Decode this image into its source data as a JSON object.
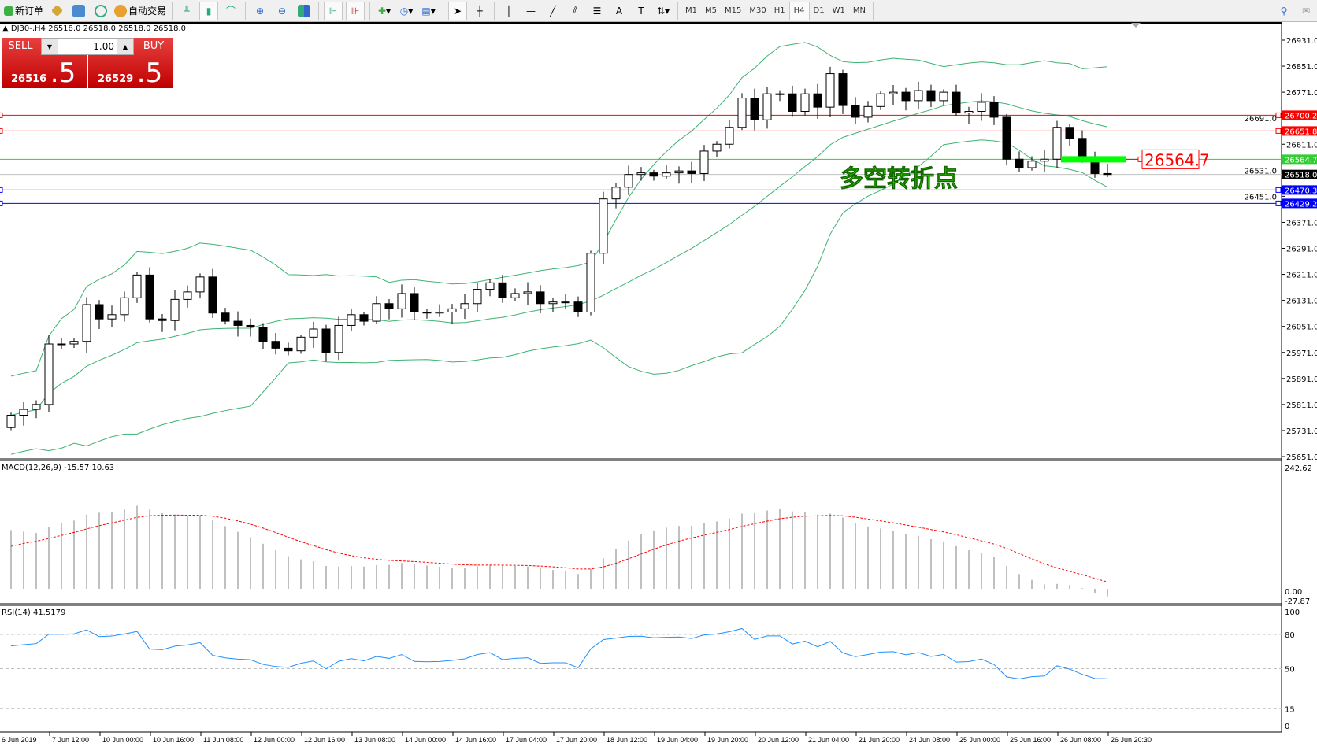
{
  "toolbar": {
    "new_order": "新订单",
    "auto_trading": "自动交易",
    "timeframes": [
      "M1",
      "M5",
      "M15",
      "M30",
      "H1",
      "H4",
      "D1",
      "W1",
      "MN"
    ],
    "active_timeframe": "H4"
  },
  "chart_header": "DJ30-,H4  26518.0 26518.0 26518.0 26518.0",
  "one_click": {
    "sell_label": "SELL",
    "buy_label": "BUY",
    "lot": "1.00",
    "sell_price_main": "26516",
    "sell_price_big": ".5",
    "buy_price_main": "26529",
    "buy_price_big": ".5"
  },
  "annotation_text": "多空转折点",
  "annotation_price_label": "26564.7",
  "colors": {
    "bollinger": "#3cb371",
    "rsi": "#1e90ff",
    "macd_hist": "#c0c0c0",
    "macd_signal": "#ff0000",
    "green_level": "#00ff00"
  },
  "chart_data": {
    "type": "candlestick",
    "symbol": "DJ30-",
    "timeframe": "H4",
    "first_open": 25740,
    "closes": [
      25778,
      25796,
      25811,
      25997,
      25997,
      26005,
      26118,
      26074,
      26087,
      26139,
      26209,
      26074,
      26069,
      26134,
      26157,
      26203,
      26092,
      26067,
      26054,
      26049,
      26005,
      25984,
      25976,
      26018,
      26043,
      25971,
      26054,
      26087,
      26067,
      26121,
      26105,
      26152,
      26095,
      26092,
      26095,
      26105,
      26121,
      26165,
      26185,
      26139,
      26152,
      26157,
      26121,
      26126,
      26126,
      26095,
      26276,
      26443,
      26479,
      26518,
      26523,
      26513,
      26523,
      26529,
      26521,
      26590,
      26611,
      26663,
      26753,
      26686,
      26766,
      26766,
      26712,
      26766,
      26725,
      26828,
      26730,
      26694,
      26727,
      26766,
      26771,
      26745,
      26776,
      26745,
      26771,
      26707,
      26712,
      26740,
      26694,
      26565,
      26539,
      26559,
      26565,
      26663,
      26629,
      26572,
      26521,
      26518
    ],
    "price_ticks": [
      "26931.0",
      "26851.0",
      "26771.0",
      "26691.0",
      "26611.0",
      "26531.0",
      "26451.0",
      "26371.0",
      "26291.0",
      "26211.0",
      "26131.0",
      "26051.0",
      "25971.0",
      "25891.0",
      "25811.0",
      "25731.0",
      "25651.0"
    ],
    "ylim": [
      25651,
      26931
    ],
    "time_labels": [
      "6 Jun 2019",
      "7 Jun 12:00",
      "10 Jun 00:00",
      "10 Jun 16:00",
      "11 Jun 08:00",
      "12 Jun 00:00",
      "12 Jun 16:00",
      "13 Jun 08:00",
      "14 Jun 00:00",
      "14 Jun 16:00",
      "17 Jun 04:00",
      "17 Jun 20:00",
      "18 Jun 12:00",
      "19 Jun 04:00",
      "19 Jun 20:00",
      "20 Jun 12:00",
      "21 Jun 04:00",
      "21 Jun 20:00",
      "24 Jun 08:00",
      "25 Jun 00:00",
      "25 Jun 16:00",
      "26 Jun 08:00",
      "26 Jun 20:30"
    ],
    "hlines": [
      {
        "price": 26700.2,
        "label": "26700.2",
        "color": "#ff0000"
      },
      {
        "price": 26651.8,
        "label": "26651.8",
        "color": "#ff0000"
      },
      {
        "price": 26564.7,
        "label": "26564.7",
        "color": "#32cd32"
      },
      {
        "price": 26518.0,
        "label": "26518.0",
        "color": "#c0c0c0",
        "label_bg": "#000000"
      },
      {
        "price": 26470.3,
        "label": "26470.3",
        "color": "#0000ff"
      },
      {
        "price": 26429.2,
        "label": "26429.2",
        "color": "#0000ff"
      }
    ],
    "bollinger": {
      "period": 20,
      "deviation": 2
    },
    "macd": {
      "label": "MACD(12,26,9) -15.57 10.63",
      "ylim": [
        -27.87,
        242.62
      ],
      "ticks": [
        "242.62",
        "0.00",
        "-27.87"
      ]
    },
    "rsi": {
      "label": "RSI(14) 41.5179",
      "ylim": [
        0,
        100
      ],
      "levels": [
        80,
        50,
        15
      ],
      "ticks": [
        "100",
        "80",
        "50",
        "15",
        "0"
      ]
    }
  }
}
